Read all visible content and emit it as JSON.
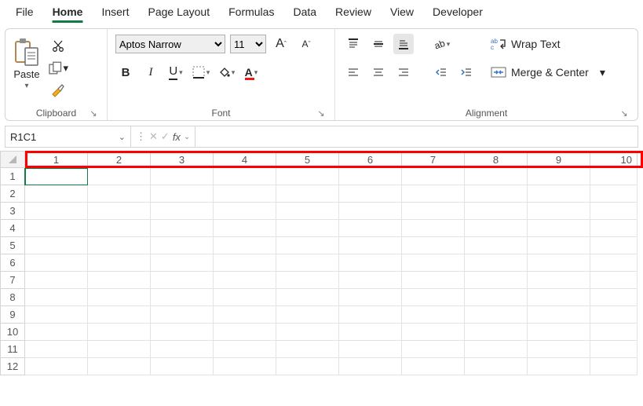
{
  "tabs": [
    "File",
    "Home",
    "Insert",
    "Page Layout",
    "Formulas",
    "Data",
    "Review",
    "View",
    "Developer"
  ],
  "active_tab_index": 1,
  "clipboard": {
    "paste_label": "Paste",
    "group_label": "Clipboard"
  },
  "font": {
    "name": "Aptos Narrow",
    "size": "11",
    "increase_label": "A",
    "increase_sup": "^",
    "decrease_label": "A",
    "decrease_sup": "ˇ",
    "bold": "B",
    "italic": "I",
    "underline": "U",
    "group_label": "Font",
    "fill_color": "#ffd54a",
    "font_color": "#e81a1a"
  },
  "alignment": {
    "wrap_label": "Wrap Text",
    "merge_label": "Merge & Center",
    "group_label": "Alignment"
  },
  "name_box": "R1C1",
  "fx_label": "fx",
  "formula_value": "",
  "columns": [
    "1",
    "2",
    "3",
    "4",
    "5",
    "6",
    "7",
    "8",
    "9",
    "10"
  ],
  "rows": [
    "1",
    "2",
    "3",
    "4",
    "5",
    "6",
    "7",
    "8",
    "9",
    "10",
    "11",
    "12"
  ],
  "highlight_color": "#ff0000",
  "accent_color": "#107c41",
  "selected_cell": {
    "row": 0,
    "col": 0
  }
}
